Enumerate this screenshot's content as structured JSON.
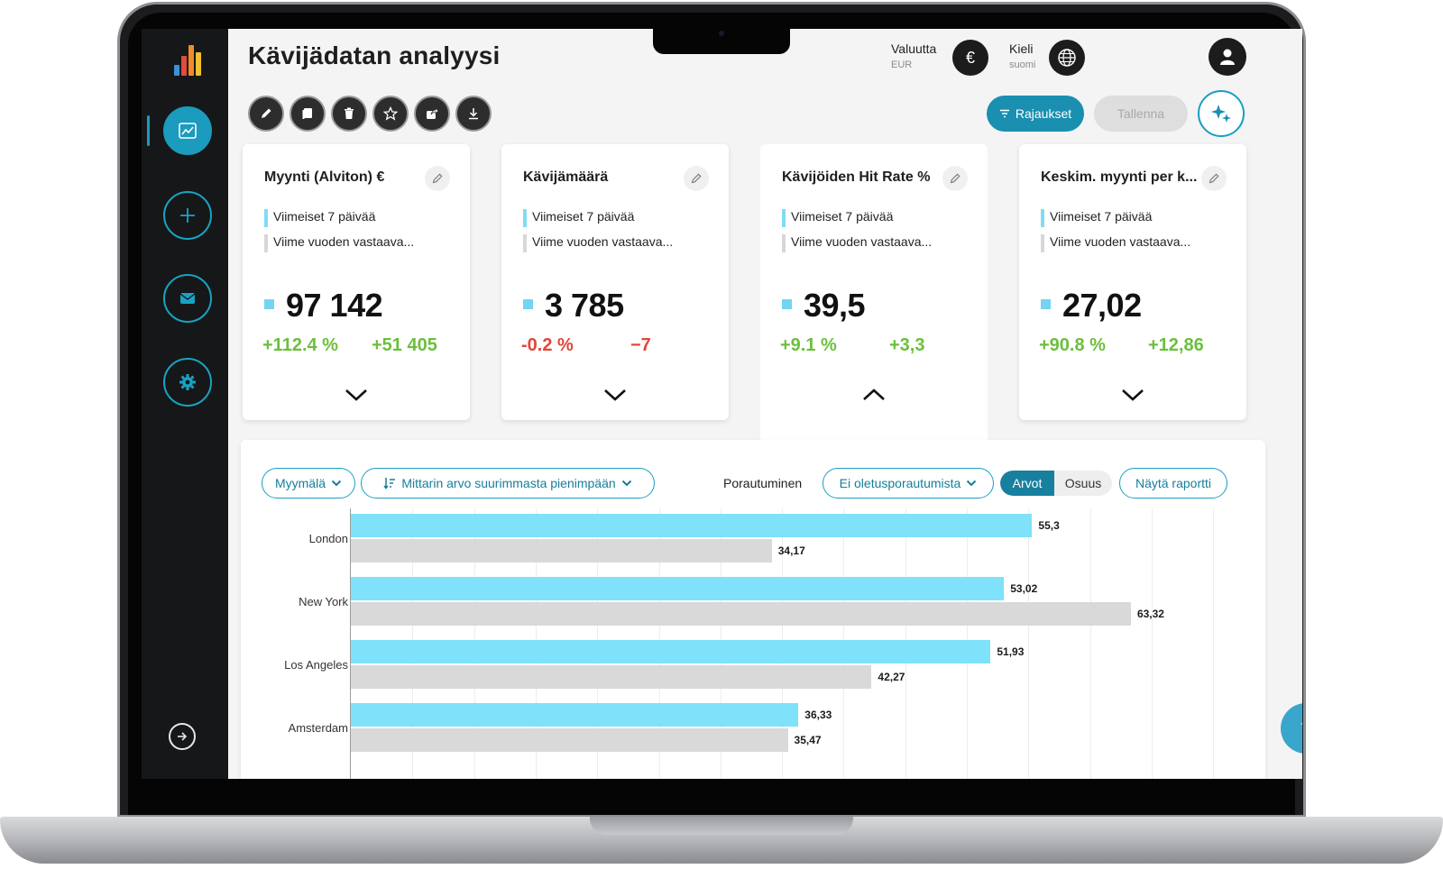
{
  "app": {
    "title": "Kävijädatan analyysi"
  },
  "header": {
    "currency_label": "Valuutta",
    "currency_value": "EUR",
    "currency_symbol": "€",
    "language_label": "Kieli",
    "language_value": "suomi"
  },
  "toolbar": {
    "icons": [
      "pencil-icon",
      "copy-icon",
      "trash-icon",
      "star-icon",
      "share-icon",
      "download-icon"
    ],
    "filters_label": "Rajaukset",
    "save_label": "Tallenna"
  },
  "cards": [
    {
      "title": "Myynti (Alviton) €",
      "legend_current": "Viimeiset 7 päivää",
      "legend_previous": "Viime vuoden vastaava...",
      "value": "97 142",
      "change_pct": "+112.4 %",
      "change_abs": "+51 405",
      "trend": "positive"
    },
    {
      "title": "Kävijämäärä",
      "legend_current": "Viimeiset 7 päivää",
      "legend_previous": "Viime vuoden vastaava...",
      "value": "3 785",
      "change_pct": "-0.2 %",
      "change_abs": "−7",
      "trend": "negative"
    },
    {
      "title": "Kävijöiden Hit Rate %",
      "legend_current": "Viimeiset 7 päivää",
      "legend_previous": "Viime vuoden vastaava...",
      "value": "39,5",
      "change_pct": "+9.1 %",
      "change_abs": "+3,3",
      "trend": "positive"
    },
    {
      "title": "Keskim. myynti per k...",
      "legend_current": "Viimeiset 7 päivää",
      "legend_previous": "Viime vuoden vastaava...",
      "value": "27,02",
      "change_pct": "+90.8 %",
      "change_abs": "+12,86",
      "trend": "positive"
    }
  ],
  "panel": {
    "store_filter": "Myymälä",
    "sort_filter": "Mittarin arvo suurimmasta pienimpään",
    "drill_label": "Porautuminen",
    "drill_value": "Ei oletusporautumista",
    "mode_values": "Arvot",
    "mode_share": "Osuus",
    "report_button": "Näytä raportti"
  },
  "colors": {
    "accent": "#1a9fc1",
    "current_bar": "#7fe1fa",
    "previous_bar": "#d9d9d9",
    "positive": "#6cbf3d",
    "negative": "#e0473b"
  },
  "chart_data": {
    "type": "bar",
    "orientation": "horizontal",
    "categories": [
      "London",
      "New York",
      "Los Angeles",
      "Amsterdam"
    ],
    "series": [
      {
        "name": "Viimeiset 7 päivää",
        "values": [
          55.3,
          53.02,
          51.93,
          36.33
        ],
        "labels": [
          "55,3",
          "53,02",
          "51,93",
          "36,33"
        ]
      },
      {
        "name": "Viime vuoden vastaava...",
        "values": [
          34.17,
          63.32,
          42.27,
          35.47
        ],
        "labels": [
          "34,17",
          "63,32",
          "42,27",
          "35,47"
        ]
      }
    ],
    "xlim": [
      0,
      70
    ],
    "grid": true
  },
  "help": {
    "label": "?"
  }
}
